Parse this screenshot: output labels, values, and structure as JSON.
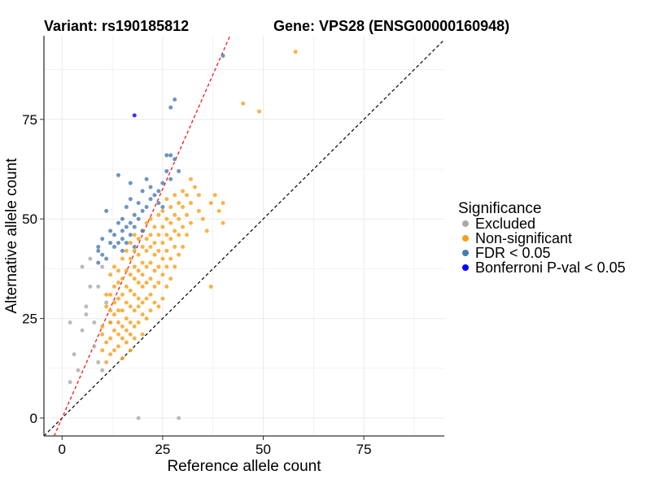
{
  "chart_data": {
    "type": "scatter",
    "title_left": "Variant: rs190185812",
    "title_right": "Gene: VPS28 (ENSG00000160948)",
    "xlabel": "Reference allele count",
    "ylabel": "Alternative allele count",
    "xlim": [
      -4.5,
      95
    ],
    "ylim": [
      -4.5,
      96
    ],
    "x_ticks": [
      0,
      25,
      50,
      75
    ],
    "y_ticks": [
      0,
      25,
      50,
      75
    ],
    "grid": true,
    "legend": {
      "title": "Significance",
      "position": "right",
      "entries": [
        {
          "label": "Excluded",
          "color": "#aaaaaa"
        },
        {
          "label": "Non-significant",
          "color": "#f5a01c"
        },
        {
          "label": "FDR < 0.05",
          "color": "#4a7bb0"
        },
        {
          "label": "Bonferroni P-val < 0.05",
          "color": "#0000ff"
        }
      ]
    },
    "reference_lines": [
      {
        "name": "identity",
        "slope": 1,
        "intercept": 0,
        "color": "#000000",
        "style": "dashed"
      },
      {
        "name": "fit",
        "slope": 2.3,
        "intercept": 0,
        "color": "#ff0000",
        "style": "dashed"
      }
    ],
    "series": [
      {
        "name": "Excluded",
        "color": "#aaaaaa",
        "points": [
          [
            2,
            9
          ],
          [
            2,
            24
          ],
          [
            3,
            16
          ],
          [
            4,
            12
          ],
          [
            5,
            38
          ],
          [
            5,
            22
          ],
          [
            6,
            28
          ],
          [
            6,
            26
          ],
          [
            7,
            33
          ],
          [
            7,
            40
          ],
          [
            8,
            24
          ],
          [
            8,
            18
          ],
          [
            9,
            33
          ],
          [
            9,
            14
          ],
          [
            10,
            12
          ],
          [
            10,
            38
          ],
          [
            11,
            29
          ],
          [
            12,
            24
          ],
          [
            19,
            0
          ],
          [
            29,
            0
          ]
        ]
      },
      {
        "name": "Non-significant",
        "color": "#f5a01c",
        "points": [
          [
            10,
            17
          ],
          [
            10,
            21
          ],
          [
            10,
            23
          ],
          [
            11,
            14
          ],
          [
            11,
            19
          ],
          [
            11,
            28
          ],
          [
            11,
            31
          ],
          [
            12,
            16
          ],
          [
            12,
            20
          ],
          [
            12,
            24
          ],
          [
            12,
            27
          ],
          [
            12,
            31
          ],
          [
            12,
            36
          ],
          [
            13,
            17
          ],
          [
            13,
            22
          ],
          [
            13,
            26
          ],
          [
            13,
            29
          ],
          [
            13,
            33
          ],
          [
            13,
            38
          ],
          [
            14,
            18
          ],
          [
            14,
            21
          ],
          [
            14,
            24
          ],
          [
            14,
            27
          ],
          [
            14,
            30
          ],
          [
            14,
            34
          ],
          [
            14,
            37
          ],
          [
            15,
            15
          ],
          [
            15,
            20
          ],
          [
            15,
            23
          ],
          [
            15,
            27
          ],
          [
            15,
            31
          ],
          [
            15,
            35
          ],
          [
            15,
            40
          ],
          [
            16,
            19
          ],
          [
            16,
            22
          ],
          [
            16,
            25
          ],
          [
            16,
            29
          ],
          [
            16,
            33
          ],
          [
            16,
            37
          ],
          [
            16,
            42
          ],
          [
            17,
            17
          ],
          [
            17,
            21
          ],
          [
            17,
            24
          ],
          [
            17,
            28
          ],
          [
            17,
            32
          ],
          [
            17,
            36
          ],
          [
            17,
            40
          ],
          [
            17,
            44
          ],
          [
            18,
            20
          ],
          [
            18,
            23
          ],
          [
            18,
            27
          ],
          [
            18,
            31
          ],
          [
            18,
            35
          ],
          [
            18,
            38
          ],
          [
            18,
            42
          ],
          [
            18,
            46
          ],
          [
            19,
            24
          ],
          [
            19,
            28
          ],
          [
            19,
            30
          ],
          [
            19,
            34
          ],
          [
            19,
            37
          ],
          [
            19,
            41
          ],
          [
            19,
            45
          ],
          [
            20,
            21
          ],
          [
            20,
            26
          ],
          [
            20,
            29
          ],
          [
            20,
            33
          ],
          [
            20,
            36
          ],
          [
            20,
            39
          ],
          [
            20,
            43
          ],
          [
            20,
            47
          ],
          [
            21,
            25
          ],
          [
            21,
            30
          ],
          [
            21,
            34
          ],
          [
            21,
            38
          ],
          [
            21,
            42
          ],
          [
            21,
            45
          ],
          [
            21,
            49
          ],
          [
            22,
            27
          ],
          [
            22,
            31
          ],
          [
            22,
            35
          ],
          [
            22,
            39
          ],
          [
            22,
            43
          ],
          [
            22,
            46
          ],
          [
            22,
            50
          ],
          [
            23,
            29
          ],
          [
            23,
            33
          ],
          [
            23,
            37
          ],
          [
            23,
            41
          ],
          [
            23,
            44
          ],
          [
            23,
            48
          ],
          [
            24,
            28
          ],
          [
            24,
            34
          ],
          [
            24,
            38
          ],
          [
            24,
            42
          ],
          [
            24,
            46
          ],
          [
            24,
            51
          ],
          [
            25,
            30
          ],
          [
            25,
            36
          ],
          [
            25,
            40
          ],
          [
            25,
            44
          ],
          [
            25,
            48
          ],
          [
            25,
            52
          ],
          [
            26,
            33
          ],
          [
            26,
            38
          ],
          [
            26,
            42
          ],
          [
            26,
            46
          ],
          [
            26,
            50
          ],
          [
            26,
            55
          ],
          [
            27,
            35
          ],
          [
            27,
            40
          ],
          [
            27,
            45
          ],
          [
            27,
            49
          ],
          [
            27,
            53
          ],
          [
            28,
            38
          ],
          [
            28,
            43
          ],
          [
            28,
            47
          ],
          [
            28,
            51
          ],
          [
            28,
            56
          ],
          [
            29,
            41
          ],
          [
            29,
            46
          ],
          [
            29,
            50
          ],
          [
            29,
            54
          ],
          [
            30,
            43
          ],
          [
            30,
            48
          ],
          [
            30,
            53
          ],
          [
            30,
            57
          ],
          [
            31,
            46
          ],
          [
            31,
            51
          ],
          [
            31,
            56
          ],
          [
            32,
            49
          ],
          [
            32,
            54
          ],
          [
            32,
            60
          ],
          [
            33,
            58
          ],
          [
            34,
            52
          ],
          [
            34,
            56
          ],
          [
            35,
            50
          ],
          [
            36,
            47
          ],
          [
            37,
            54
          ],
          [
            37,
            33
          ],
          [
            38,
            56
          ],
          [
            39,
            52
          ],
          [
            40,
            54
          ],
          [
            40,
            49
          ],
          [
            45,
            79
          ],
          [
            49,
            77
          ],
          [
            58,
            92
          ]
        ]
      },
      {
        "name": "FDR < 0.05",
        "color": "#4a7bb0",
        "points": [
          [
            9,
            39
          ],
          [
            9,
            42
          ],
          [
            9,
            43
          ],
          [
            10,
            41
          ],
          [
            10,
            45
          ],
          [
            11,
            52
          ],
          [
            11,
            40
          ],
          [
            12,
            44
          ],
          [
            12,
            47
          ],
          [
            13,
            43
          ],
          [
            13,
            46
          ],
          [
            14,
            49
          ],
          [
            14,
            61
          ],
          [
            14,
            44
          ],
          [
            15,
            42
          ],
          [
            15,
            45
          ],
          [
            15,
            47
          ],
          [
            15,
            50
          ],
          [
            16,
            44
          ],
          [
            16,
            48
          ],
          [
            16,
            53
          ],
          [
            17,
            46
          ],
          [
            17,
            49
          ],
          [
            17,
            55
          ],
          [
            17,
            59
          ],
          [
            18,
            43
          ],
          [
            18,
            48
          ],
          [
            18,
            51
          ],
          [
            19,
            50
          ],
          [
            19,
            54
          ],
          [
            20,
            47
          ],
          [
            20,
            52
          ],
          [
            20,
            57
          ],
          [
            21,
            53
          ],
          [
            21,
            60
          ],
          [
            22,
            55
          ],
          [
            22,
            58
          ],
          [
            23,
            56
          ],
          [
            24,
            54
          ],
          [
            24,
            57
          ],
          [
            25,
            53
          ],
          [
            25,
            59
          ],
          [
            26,
            62
          ],
          [
            26,
            66
          ],
          [
            27,
            60
          ],
          [
            27,
            66
          ],
          [
            28,
            65
          ],
          [
            28,
            80
          ],
          [
            29,
            62
          ],
          [
            27,
            78
          ],
          [
            40,
            91
          ]
        ]
      },
      {
        "name": "Bonferroni P-val < 0.05",
        "color": "#0000ff",
        "points": [
          [
            18,
            76
          ]
        ]
      }
    ]
  }
}
